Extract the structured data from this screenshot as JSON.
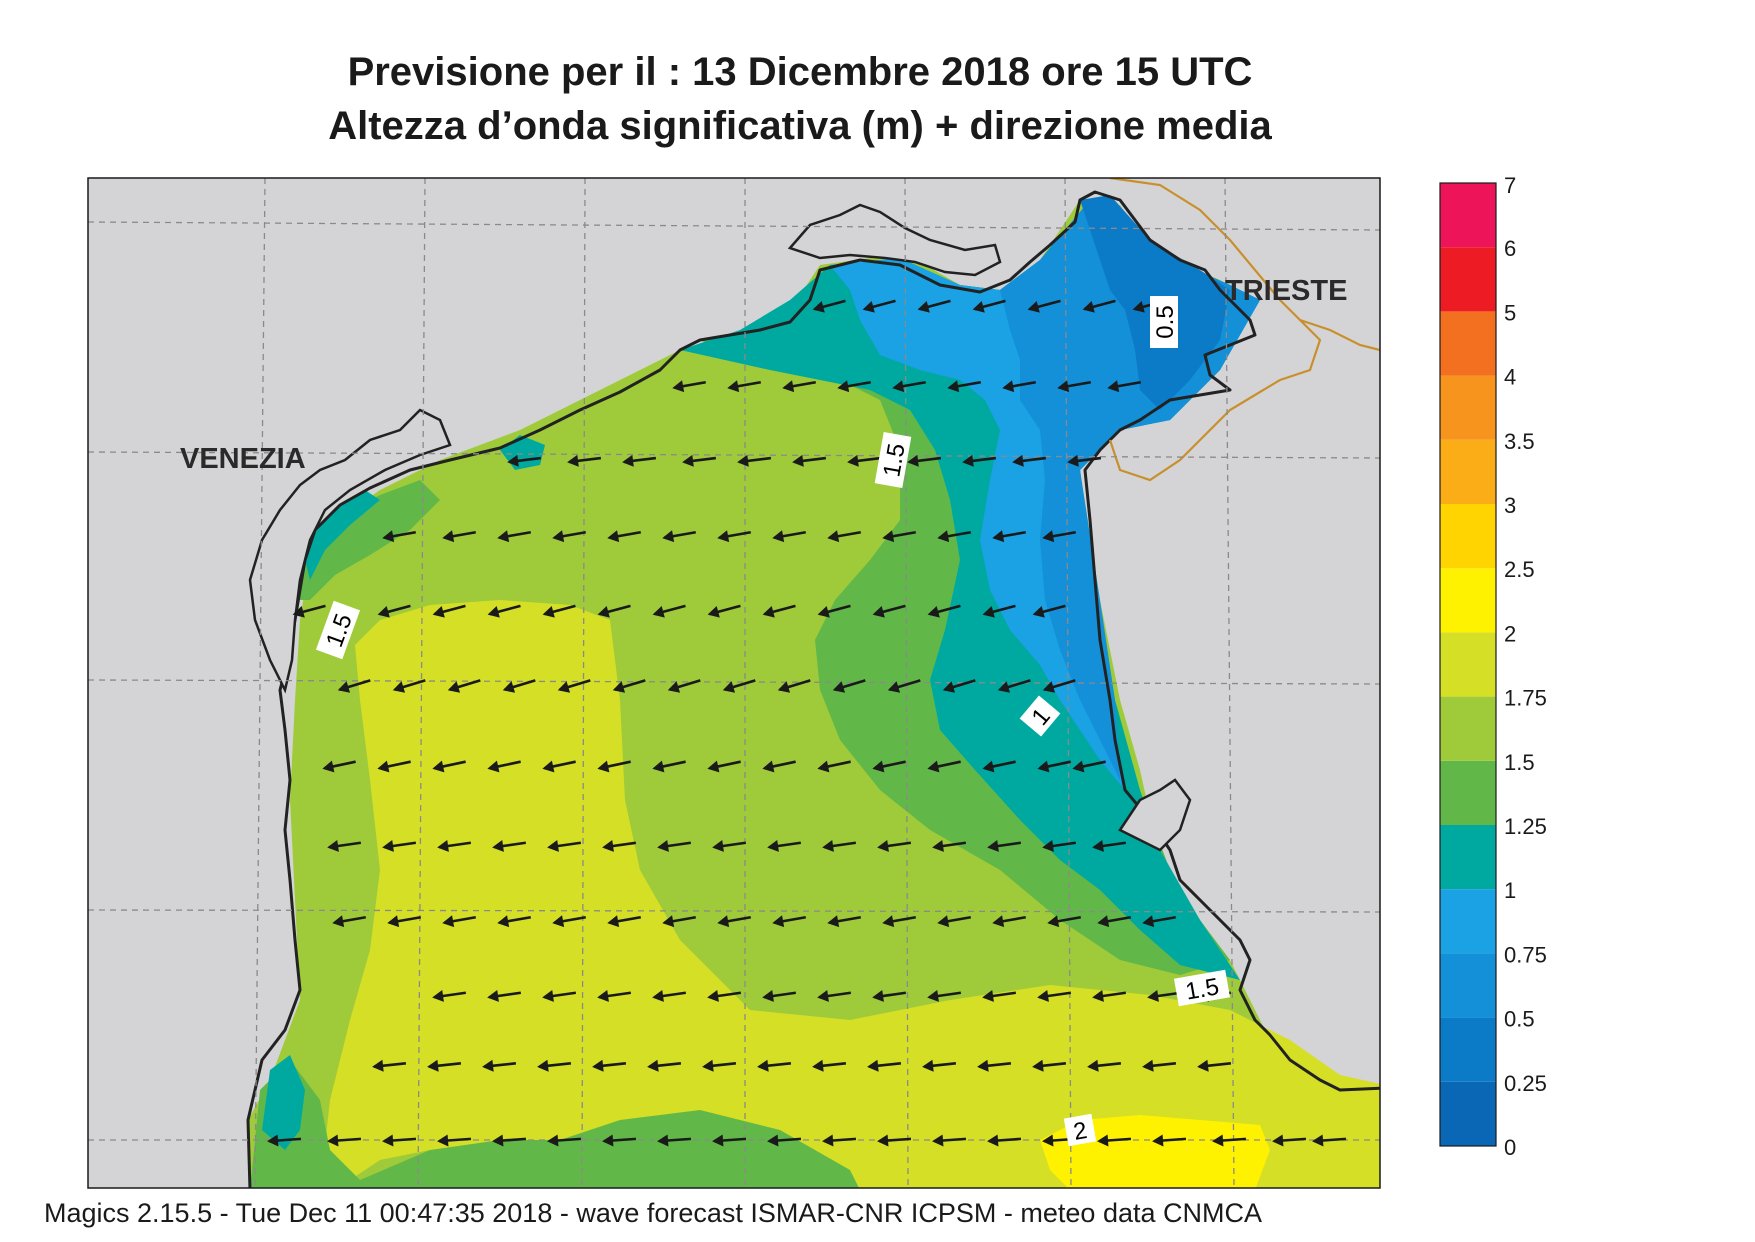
{
  "header": {
    "title_line1": "Previsione per il  :  13 Dicembre  2018   ore 15 UTC",
    "title_line2": "Altezza d’onda significativa (m) + direzione media"
  },
  "map": {
    "cities": [
      "VENEZIA",
      "TRIESTE"
    ],
    "contour_labels": [
      "0.5",
      "1",
      "1.5",
      "1.5",
      "1.5",
      "2"
    ]
  },
  "legend": {
    "ticks": [
      "0",
      "0.25",
      "0.5",
      "0.75",
      "1",
      "1.25",
      "1.5",
      "1.75",
      "2",
      "2.5",
      "3",
      "3.5",
      "4",
      "5",
      "6",
      "7"
    ],
    "colors": [
      "#0a67b5",
      "#0b7bc8",
      "#1390d8",
      "#1aa2e4",
      "#00a9a0",
      "#61b848",
      "#9fcb3a",
      "#d4df26",
      "#fff200",
      "#ffd400",
      "#fbad18",
      "#f7941d",
      "#f37021",
      "#ed1c24",
      "#ed1459"
    ]
  },
  "colors": {
    "land": "#d4d4d6",
    "coast": "#222222",
    "border": "#c8902c",
    "arrow": "#1a1a1a"
  },
  "footer": {
    "text": "Magics 2.15.5 - Tue Dec 11 00:47:35 2018 - wave forecast  ISMAR-CNR  ICPSM - meteo data   CNMCA"
  }
}
